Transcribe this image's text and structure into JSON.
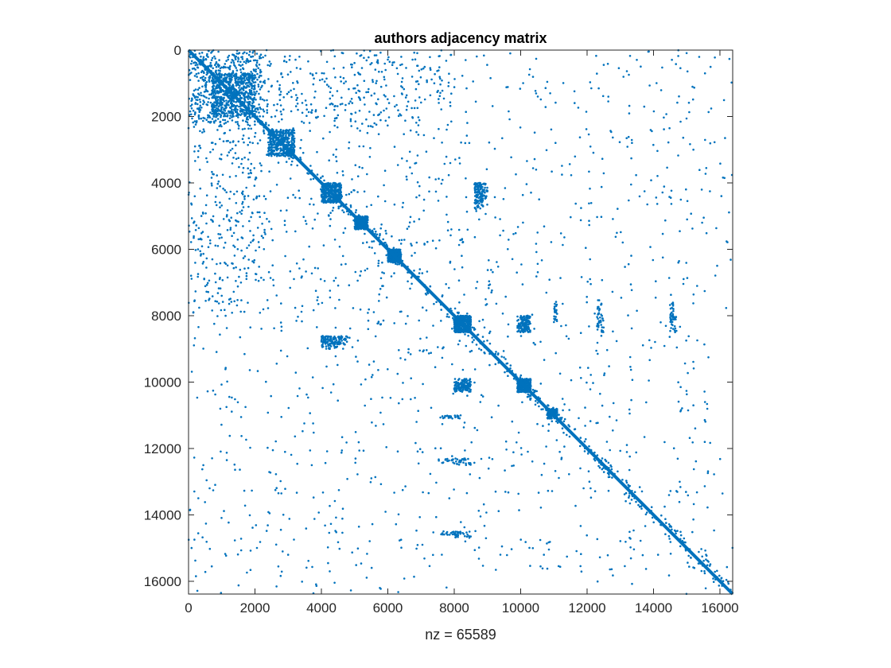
{
  "chart_data": {
    "type": "scatter",
    "subtype": "sparsity-pattern",
    "title": "authors adjacency matrix",
    "xlabel": "nz = 65589",
    "ylabel": "",
    "matrix_size": 16384,
    "nonzeros": 65589,
    "xlim": [
      0,
      16384
    ],
    "ylim": [
      16384,
      0
    ],
    "y_reversed": true,
    "xticks": [
      0,
      2000,
      4000,
      6000,
      8000,
      10000,
      12000,
      14000,
      16000
    ],
    "yticks": [
      0,
      2000,
      4000,
      6000,
      8000,
      10000,
      12000,
      14000,
      16000
    ],
    "xtick_labels": [
      "0",
      "2000",
      "4000",
      "6000",
      "8000",
      "10000",
      "12000",
      "14000",
      "16000"
    ],
    "ytick_labels": [
      "0",
      "2000",
      "4000",
      "6000",
      "8000",
      "10000",
      "12000",
      "14000",
      "16000"
    ],
    "grid": false,
    "marker_color": "#0072BD",
    "diagonal": true,
    "dense_blocks": [
      {
        "rows": [
          0,
          2200
        ],
        "cols": [
          0,
          2200
        ],
        "density": "high"
      },
      {
        "rows": [
          700,
          2000
        ],
        "cols": [
          700,
          2000
        ],
        "density": "very-high"
      },
      {
        "rows": [
          2400,
          3200
        ],
        "cols": [
          2400,
          3200
        ],
        "density": "high"
      },
      {
        "rows": [
          4000,
          4600
        ],
        "cols": [
          4000,
          4600
        ],
        "density": "high"
      },
      {
        "rows": [
          5000,
          5400
        ],
        "cols": [
          5000,
          5400
        ],
        "density": "high"
      },
      {
        "rows": [
          6000,
          6400
        ],
        "cols": [
          6000,
          6400
        ],
        "density": "high"
      },
      {
        "rows": [
          8000,
          8500
        ],
        "cols": [
          8000,
          8500
        ],
        "density": "very-high"
      },
      {
        "rows": [
          9900,
          10300
        ],
        "cols": [
          9900,
          10300
        ],
        "density": "high"
      },
      {
        "rows": [
          10800,
          11100
        ],
        "cols": [
          10800,
          11100
        ],
        "density": "medium"
      }
    ],
    "off_diagonal_clusters": [
      {
        "rows": [
          0,
          8000
        ],
        "cols": [
          0,
          2500
        ],
        "density": "high"
      },
      {
        "rows": [
          0,
          2200
        ],
        "cols": [
          0,
          8000
        ],
        "density": "high"
      },
      {
        "rows": [
          4000,
          8000
        ],
        "cols": [
          400,
          6000
        ],
        "density": "medium"
      },
      {
        "rows": [
          8000,
          8500
        ],
        "cols": [
          9900,
          10300
        ],
        "density": "medium"
      },
      {
        "rows": [
          9900,
          10300
        ],
        "cols": [
          8000,
          8500
        ],
        "density": "medium"
      },
      {
        "rows": [
          8600,
          8900
        ],
        "cols": [
          4000,
          4800
        ],
        "density": "medium"
      },
      {
        "rows": [
          4000,
          4600
        ],
        "cols": [
          8600,
          9000
        ],
        "density": "medium"
      },
      {
        "rows": [
          8000,
          8500
        ],
        "cols": [
          12300,
          12500
        ],
        "density": "low"
      },
      {
        "rows": [
          8000,
          8500
        ],
        "cols": [
          14500,
          14700
        ],
        "density": "low"
      },
      {
        "rows": [
          12300,
          12450
        ],
        "cols": [
          7600,
          8200
        ],
        "density": "low"
      },
      {
        "rows": [
          11000,
          11100
        ],
        "cols": [
          7600,
          8200
        ],
        "density": "low"
      },
      {
        "rows": [
          14500,
          14600
        ],
        "cols": [
          7600,
          8200
        ],
        "density": "low"
      }
    ]
  }
}
